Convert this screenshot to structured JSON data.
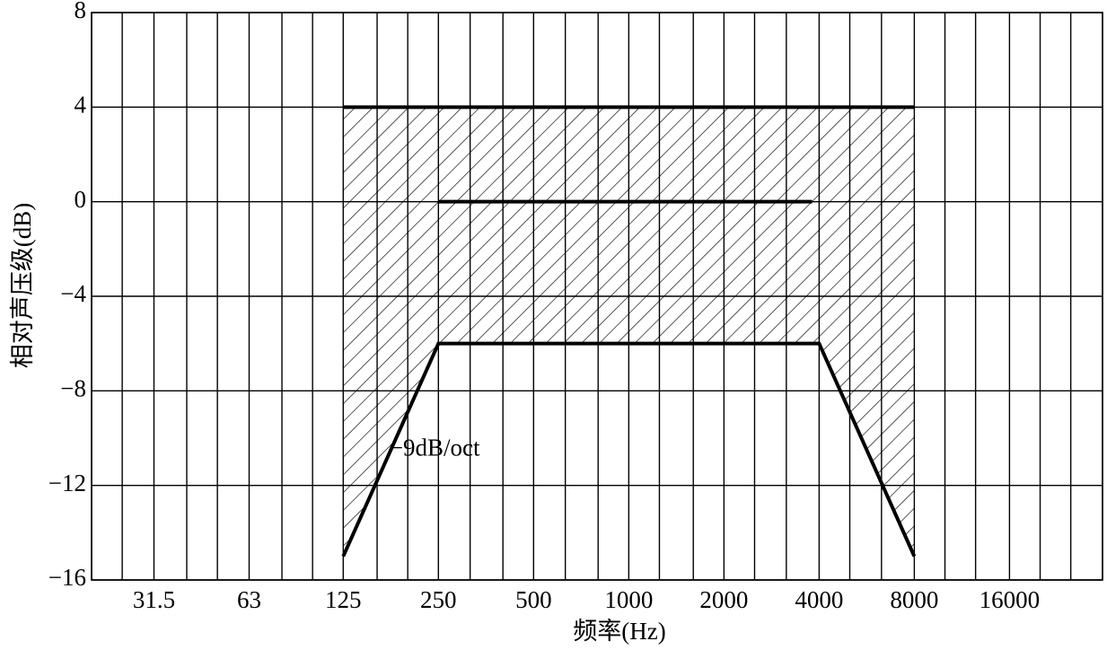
{
  "chart_data": {
    "type": "line",
    "xlabel": "频率(Hz)",
    "ylabel": "相对声压级(dB)",
    "xscale": "log",
    "xlim": [
      20,
      31500
    ],
    "xticks": [
      31.5,
      63,
      125,
      250,
      500,
      1000,
      2000,
      4000,
      8000,
      16000
    ],
    "xgrid": [
      20,
      25,
      31.5,
      40,
      50,
      63,
      80,
      100,
      125,
      160,
      200,
      250,
      315,
      400,
      500,
      630,
      800,
      1000,
      1250,
      1600,
      2000,
      2500,
      3150,
      4000,
      5000,
      6300,
      8000,
      10000,
      12500,
      16000,
      20000,
      25000,
      31500
    ],
    "ylim": [
      -16,
      8
    ],
    "yticks": [
      8,
      4,
      0,
      {
        "value": -4,
        "label": "−4"
      },
      {
        "value": -8,
        "label": "−8"
      },
      {
        "value": -12,
        "label": "−12"
      },
      {
        "value": -16,
        "label": "−16"
      }
    ],
    "grid": true,
    "series": [
      {
        "color": "#000000",
        "x": [
          125,
          8000
        ],
        "values": [
          4,
          4
        ]
      },
      {
        "color": "#000000",
        "x": [
          250,
          3800
        ],
        "values": [
          0,
          0
        ]
      },
      {
        "color": "#000000",
        "x": [
          125,
          250,
          4000,
          8000
        ],
        "values": [
          -15,
          -6,
          -6,
          -15
        ]
      }
    ],
    "fill_between": [
      0,
      2
    ],
    "annotations": [
      {
        "text": "−9dB/oct",
        "x": 175,
        "y": -10.5
      }
    ]
  }
}
